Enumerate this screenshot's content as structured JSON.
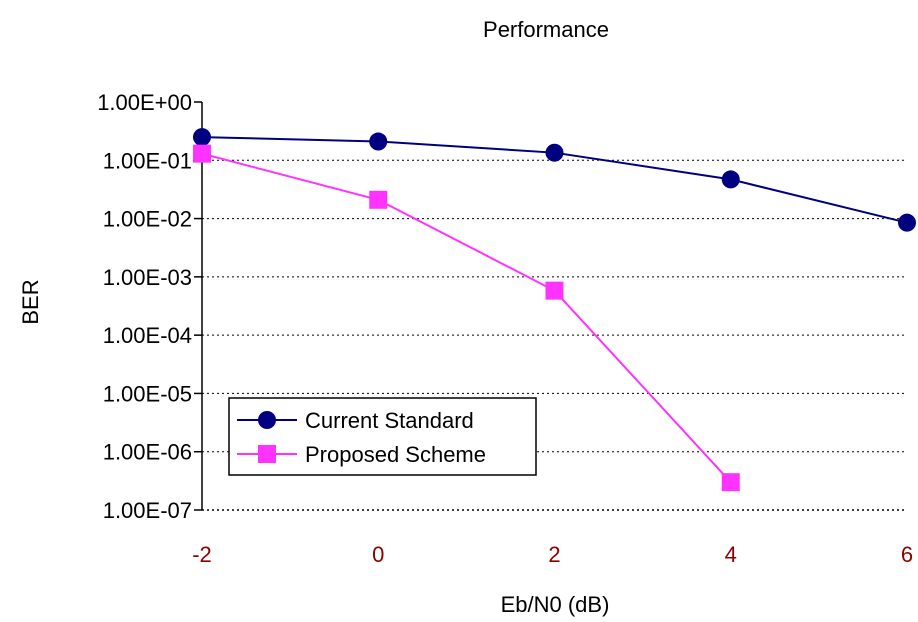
{
  "chart_data": {
    "type": "line",
    "title": "Performance",
    "xlabel": "Eb/N0 (dB)",
    "ylabel": "BER",
    "y_scale": "log",
    "xlim": [
      -2,
      6
    ],
    "ylim": [
      1e-07,
      1
    ],
    "x_ticks": [
      "-2",
      "0",
      "2",
      "4",
      "6"
    ],
    "y_ticks": [
      "1.00E+00",
      "1.00E-01",
      "1.00E-02",
      "1.00E-03",
      "1.00E-04",
      "1.00E-05",
      "1.00E-06",
      "1.00E-07"
    ],
    "grid": "horizontal dotted",
    "legend_position": "bottom-left",
    "series": [
      {
        "name": "Current Standard",
        "color": "#000080",
        "marker": "circle",
        "points": [
          {
            "x": -2,
            "y": 0.25
          },
          {
            "x": 0,
            "y": 0.21
          },
          {
            "x": 2,
            "y": 0.135
          },
          {
            "x": 4,
            "y": 0.047
          },
          {
            "x": 6,
            "y": 0.0085
          }
        ]
      },
      {
        "name": "Proposed Scheme",
        "color": "#ff33ff",
        "marker": "square",
        "points": [
          {
            "x": -2,
            "y": 0.13
          },
          {
            "x": 0,
            "y": 0.021
          },
          {
            "x": 2,
            "y": 0.00058
          },
          {
            "x": 4,
            "y": 3e-07
          }
        ]
      }
    ]
  }
}
